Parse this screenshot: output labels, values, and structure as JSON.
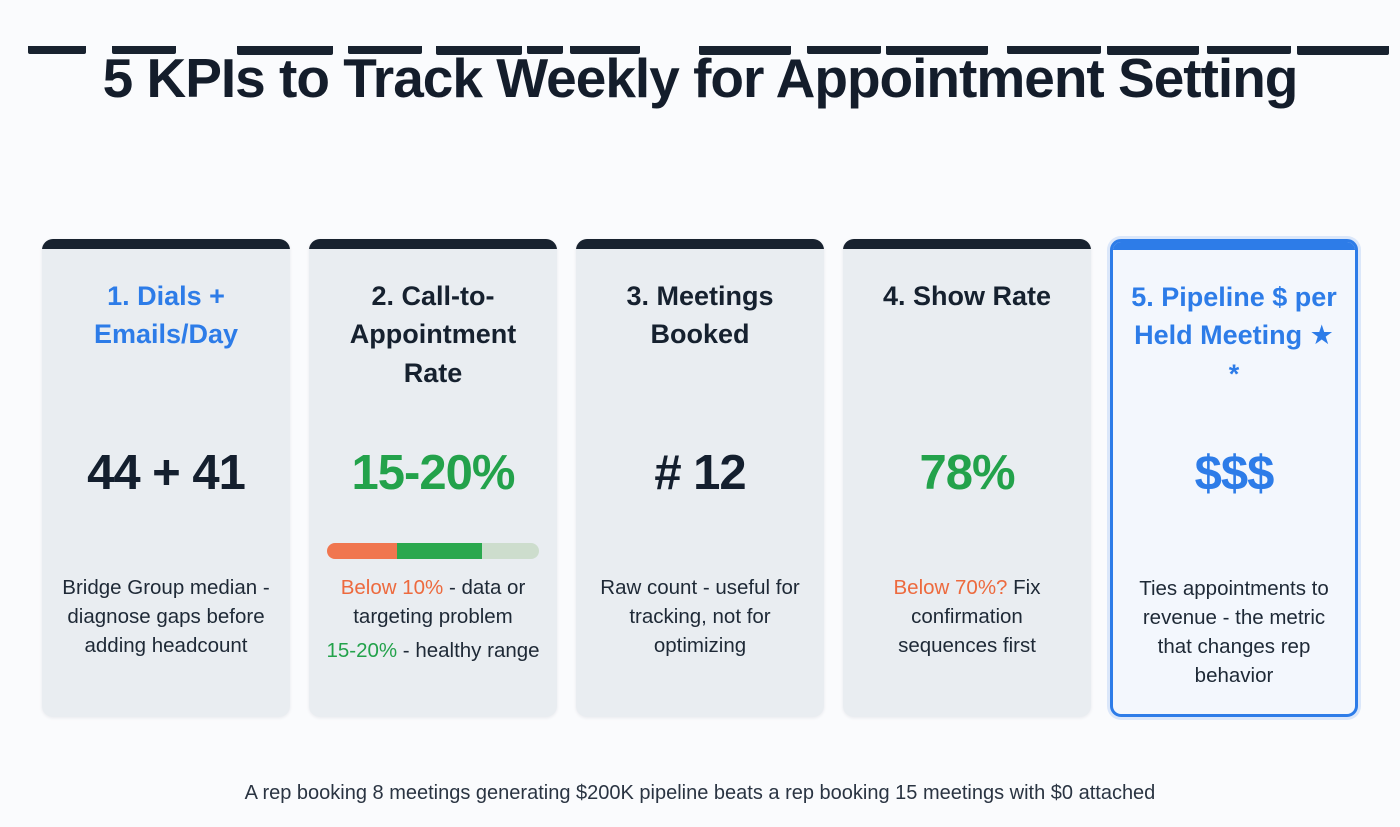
{
  "page": {
    "title": "5 KPIs to Track Weekly for Appointment Setting",
    "footer": "A rep booking 8 meetings generating $200K pipeline beats a rep booking 15 meetings with $0 attached"
  },
  "colors": {
    "accent_blue": "#2d7ce8",
    "green": "#23a24b",
    "orange": "#ed6a3e",
    "dark": "#18222f",
    "card_background": "#e9edf1"
  },
  "cards": [
    {
      "heading": "1. Dials + Emails/Day",
      "value": "44 + 41",
      "description": "Bridge Group median - diagnose gaps before adding headcount"
    },
    {
      "heading": "2. Call-to-Appointment Rate",
      "value": "15-20%",
      "desc_line1": {
        "highlight": "Below 10%",
        "rest": " - data or targeting problem"
      },
      "desc_line2": {
        "highlight": "15-20%",
        "rest": " - healthy range"
      },
      "bar_segments": [
        {
          "color": "#f0764f",
          "percent": 33
        },
        {
          "color": "#2aa84e",
          "percent": 40
        },
        {
          "color": "#cdddcd",
          "percent": 27
        }
      ]
    },
    {
      "heading": "3. Meetings Booked",
      "value": "# 12",
      "description": "Raw count - useful for tracking, not for optimizing"
    },
    {
      "heading": "4. Show Rate",
      "value": "78%",
      "desc": {
        "highlight": "Below 70%?",
        "rest": " Fix confirmation sequences first"
      }
    },
    {
      "heading": "5. Pipeline $ per Held Meeting",
      "star": "★",
      "asterisk": "*",
      "value": "$$$",
      "description": "Ties appointments to revenue - the metric that changes rep behavior"
    }
  ]
}
